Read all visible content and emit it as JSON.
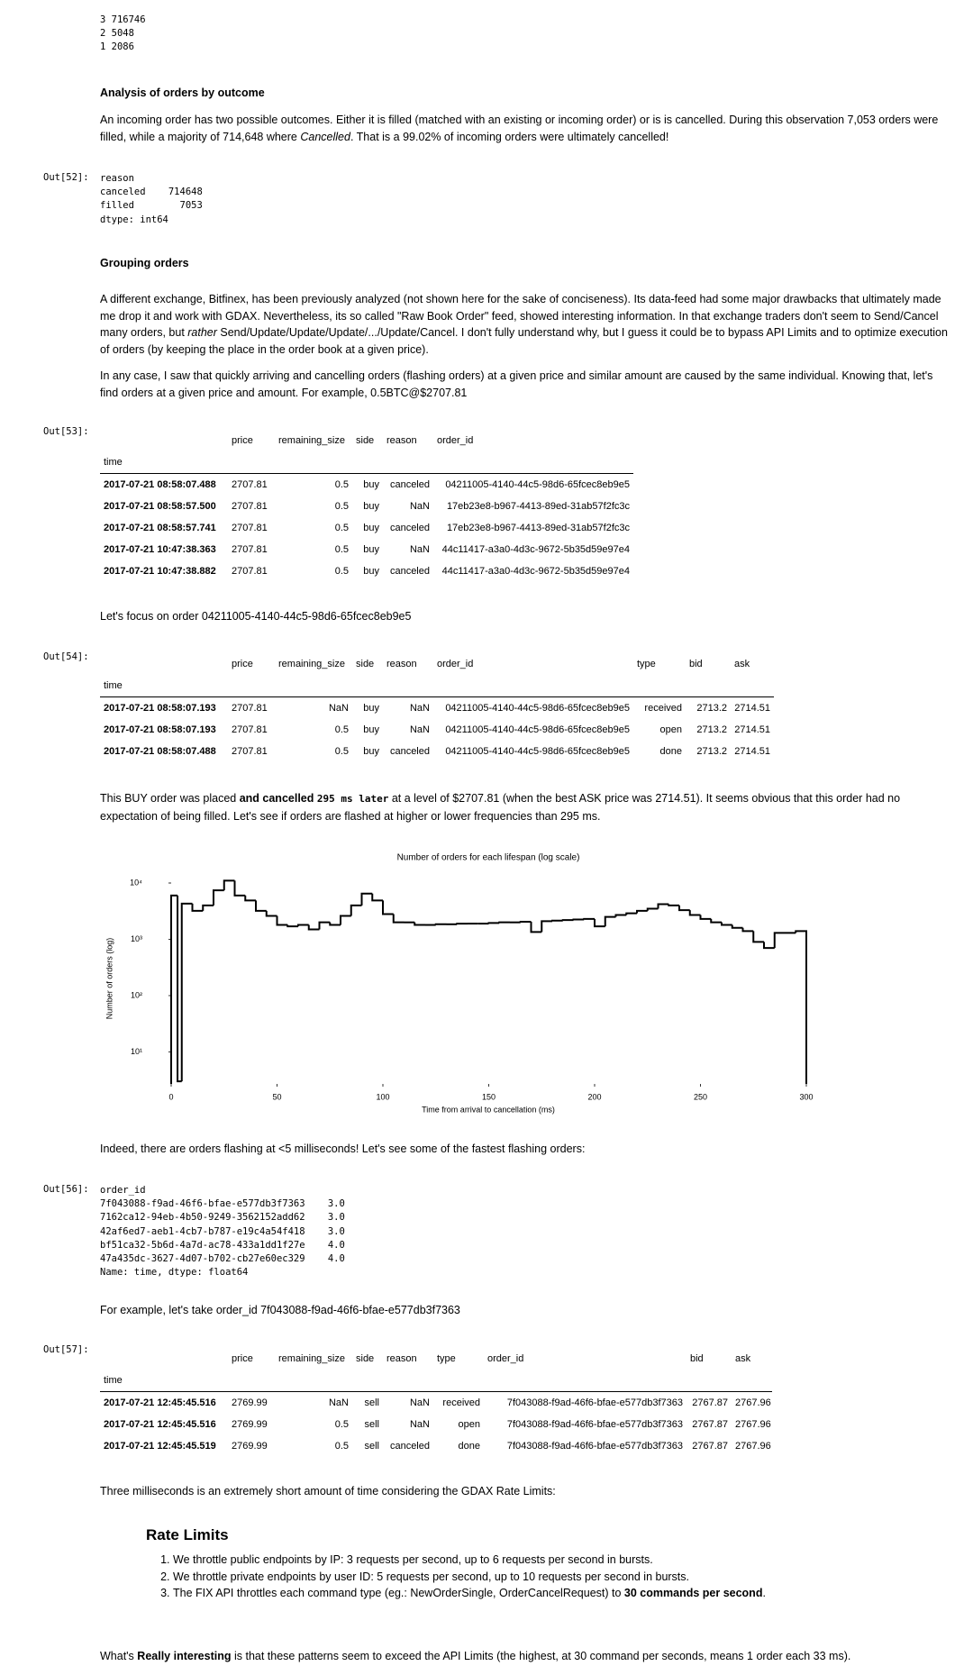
{
  "output_top": [
    "3 716746",
    "2 5048",
    "1 2086"
  ],
  "h_analysis": "Analysis of orders by outcome",
  "p_analysis": [
    "An incoming order has two possible outcomes. Either it is filled (matched with an existing or incoming order) or is is cancelled. During this observation 7,053 orders were filled, while a majority of 714,648 where ",
    "Cancelled",
    ". That is a 99.02% of incoming orders were ultimately cancelled!"
  ],
  "out52": {
    "prompt": "Out[52]:",
    "lines": [
      "reason",
      "canceled    714648",
      "filled        7053",
      "dtype: int64"
    ]
  },
  "h_grouping": "Grouping orders",
  "p_grouping1": [
    "A different exchange, Bitfinex, has been previously analyzed (not shown here for the sake of conciseness). Its data-feed had some major drawbacks that ultimately made me drop it and work with GDAX. Nevertheless, its so called \"Raw Book Order\" feed, showed interesting information. In that exchange traders don't seem to Send/Cancel many orders, but ",
    "rather",
    " Send/Update/Update/Update/.../Update/Cancel. I don't fully understand why, but I guess it could be to bypass API Limits and to optimize execution of orders (by keeping the place in the order book at a given price)."
  ],
  "p_grouping2": "In any case, I saw that quickly arriving and cancelling orders (flashing orders) at a given price and similar amount are caused by the same individual. Knowing that, let's find orders at a given price and amount. For example, 0.5BTC@$2707.81",
  "out53": {
    "prompt": "Out[53]:",
    "index_name": "time",
    "columns": [
      "price",
      "remaining_size",
      "side",
      "reason",
      "order_id"
    ],
    "rows": [
      [
        "2017-07-21 08:58:07.488",
        "2707.81",
        "0.5",
        "buy",
        "canceled",
        "04211005-4140-44c5-98d6-65fcec8eb9e5"
      ],
      [
        "2017-07-21 08:58:57.500",
        "2707.81",
        "0.5",
        "buy",
        "NaN",
        "17eb23e8-b967-4413-89ed-31ab57f2fc3c"
      ],
      [
        "2017-07-21 08:58:57.741",
        "2707.81",
        "0.5",
        "buy",
        "canceled",
        "17eb23e8-b967-4413-89ed-31ab57f2fc3c"
      ],
      [
        "2017-07-21 10:47:38.363",
        "2707.81",
        "0.5",
        "buy",
        "NaN",
        "44c11417-a3a0-4d3c-9672-5b35d59e97e4"
      ],
      [
        "2017-07-21 10:47:38.882",
        "2707.81",
        "0.5",
        "buy",
        "canceled",
        "44c11417-a3a0-4d3c-9672-5b35d59e97e4"
      ]
    ]
  },
  "p_focus": "Let's focus on order 04211005-4140-44c5-98d6-65fcec8eb9e5",
  "out54": {
    "prompt": "Out[54]:",
    "index_name": "time",
    "columns": [
      "price",
      "remaining_size",
      "side",
      "reason",
      "order_id",
      "type",
      "bid",
      "ask"
    ],
    "rows": [
      [
        "2017-07-21 08:58:07.193",
        "2707.81",
        "NaN",
        "buy",
        "NaN",
        "04211005-4140-44c5-98d6-65fcec8eb9e5",
        "received",
        "2713.2",
        "2714.51"
      ],
      [
        "2017-07-21 08:58:07.193",
        "2707.81",
        "0.5",
        "buy",
        "NaN",
        "04211005-4140-44c5-98d6-65fcec8eb9e5",
        "open",
        "2713.2",
        "2714.51"
      ],
      [
        "2017-07-21 08:58:07.488",
        "2707.81",
        "0.5",
        "buy",
        "canceled",
        "04211005-4140-44c5-98d6-65fcec8eb9e5",
        "done",
        "2713.2",
        "2714.51"
      ]
    ]
  },
  "p_buy": [
    "This BUY order was placed ",
    "and cancelled ",
    "295 ms later",
    " at a level of $2707.81 (when the best ASK price was 2714.51). It seems obvious that this order had no expectation of being filled. Let's see if orders are flashed at higher or lower frequencies than 295 ms."
  ],
  "chart_data": {
    "type": "histogram",
    "title": "Number of orders for each lifespan (log scale)",
    "x_label": "Time from arrival to cancellation (ms)",
    "y_label": "Number of orders (log)",
    "bins": [
      0,
      3,
      5,
      10,
      15,
      20,
      25,
      30,
      35,
      40,
      45,
      50,
      55,
      60,
      65,
      70,
      75,
      80,
      85,
      90,
      95,
      100,
      105,
      110,
      115,
      120,
      125,
      130,
      135,
      140,
      145,
      150,
      155,
      160,
      165,
      170,
      175,
      180,
      185,
      190,
      195,
      200,
      205,
      210,
      215,
      220,
      225,
      230,
      235,
      240,
      245,
      250,
      255,
      260,
      265,
      270,
      275,
      280,
      285,
      290,
      295,
      300
    ],
    "values": [
      6000,
      3,
      4300,
      3200,
      4000,
      7400,
      11000,
      6000,
      4900,
      3200,
      2600,
      1800,
      1700,
      1800,
      1500,
      2000,
      1800,
      2600,
      4000,
      6500,
      4900,
      2800,
      2000,
      2000,
      1800,
      1800,
      1850,
      1850,
      1900,
      1900,
      1900,
      1950,
      2000,
      2000,
      2050,
      1350,
      2100,
      2150,
      2200,
      2250,
      2300,
      1700,
      2500,
      2700,
      2900,
      3200,
      3500,
      4200,
      4000,
      3300,
      2700,
      2300,
      2000,
      1800,
      1600,
      1400,
      900,
      700,
      1300,
      1300,
      1400
    ],
    "color": "#000000",
    "log_y": true,
    "xlim": [
      0,
      300
    ],
    "xticks": [
      0,
      50,
      100,
      150,
      200,
      250,
      300
    ],
    "ylim": [
      2.7,
      15000
    ],
    "yticks": [
      {
        "value": 10,
        "label": "10¹"
      },
      {
        "value": 100,
        "label": "10²"
      },
      {
        "value": 1000,
        "label": "10³"
      },
      {
        "value": 10000,
        "label": "10⁴"
      }
    ]
  },
  "p_indeed": "Indeed, there are orders flashing at <5 milliseconds! Let's see some of the fastest flashing orders:",
  "out56": {
    "prompt": "Out[56]:",
    "lines": [
      "order_id",
      "7f043088-f9ad-46f6-bfae-e577db3f7363    3.0",
      "7162ca12-94eb-4b50-9249-3562152add62    3.0",
      "42af6ed7-aeb1-4cb7-b787-e19c4a54f418    3.0",
      "bf51ca32-5b6d-4a7d-ac78-433a1dd1f27e    4.0",
      "47a435dc-3627-4d07-b702-cb27e60ec329    4.0",
      "Name: time, dtype: float64"
    ]
  },
  "p_example": "For example, let's take order_id 7f043088-f9ad-46f6-bfae-e577db3f7363",
  "out57": {
    "prompt": "Out[57]:",
    "index_name": "time",
    "columns": [
      "price",
      "remaining_size",
      "side",
      "reason",
      "type",
      "order_id",
      "bid",
      "ask"
    ],
    "rows": [
      [
        "2017-07-21 12:45:45.516",
        "2769.99",
        "NaN",
        "sell",
        "NaN",
        "received",
        "7f043088-f9ad-46f6-bfae-e577db3f7363",
        "2767.87",
        "2767.96"
      ],
      [
        "2017-07-21 12:45:45.516",
        "2769.99",
        "0.5",
        "sell",
        "NaN",
        "open",
        "7f043088-f9ad-46f6-bfae-e577db3f7363",
        "2767.87",
        "2767.96"
      ],
      [
        "2017-07-21 12:45:45.519",
        "2769.99",
        "0.5",
        "sell",
        "canceled",
        "done",
        "7f043088-f9ad-46f6-bfae-e577db3f7363",
        "2767.87",
        "2767.96"
      ]
    ]
  },
  "p_three": "Three milliseconds is an extremely short amount of time considering the GDAX Rate Limits:",
  "rate_title": "Rate Limits",
  "rate_items": [
    [
      "We throttle public endpoints by IP: 3 requests per second, up to 6 requests per second in bursts."
    ],
    [
      "We throttle private endpoints by user ID: 5 requests per second, up to 10 requests per second in bursts."
    ],
    [
      "The FIX API throttles each command type (eg.: NewOrderSingle, OrderCancelRequest) to ",
      "30 commands per second",
      "."
    ]
  ],
  "p_last": [
    "What's ",
    "Really interesting",
    " is that these patterns seem to exceed the API Limits (the highest, at 30 command per seconds, means 1 order each 33 ms)."
  ]
}
